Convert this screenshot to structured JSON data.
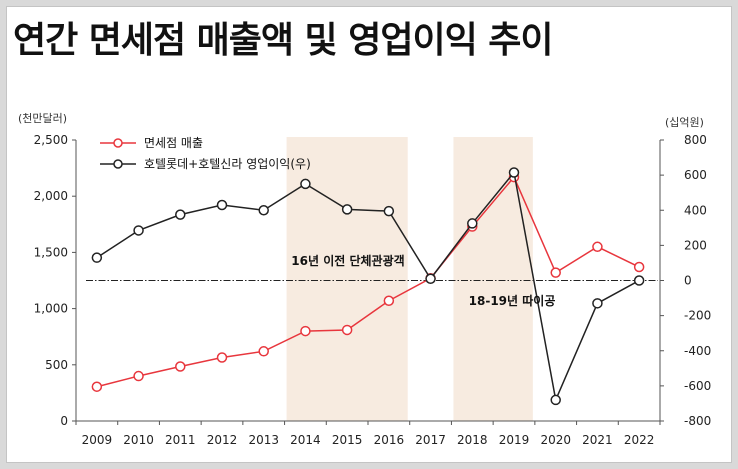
{
  "chart_data": {
    "type": "line",
    "title": "연간 면세점 매출액 및 영업이익 추이",
    "y_left_label": "(천만달러)",
    "y_right_label": "(십억원)",
    "x": [
      "2009",
      "2010",
      "2011",
      "2012",
      "2013",
      "2014",
      "2015",
      "2016",
      "2017",
      "2018",
      "2019",
      "2020",
      "2021",
      "2022"
    ],
    "y_left_ticks": [
      "0",
      "500",
      "1,000",
      "1,500",
      "2,000",
      "2,500"
    ],
    "y_right_ticks": [
      "-800",
      "-600",
      "-400",
      "-200",
      "0",
      "200",
      "400",
      "600",
      "800"
    ],
    "ylim_left": [
      0,
      2500
    ],
    "ylim_right": [
      -800,
      800
    ],
    "series": [
      {
        "name": "면세점 매출",
        "axis": "left",
        "color": "#e8363d",
        "values": [
          305,
          400,
          485,
          565,
          620,
          800,
          810,
          1070,
          1270,
          1730,
          2170,
          1320,
          1550,
          1370
        ]
      },
      {
        "name": "호텔롯데+호텔신라 영업이익(우)",
        "axis": "right",
        "color": "#222222",
        "values": [
          130,
          285,
          375,
          430,
          400,
          550,
          405,
          395,
          10,
          325,
          615,
          -680,
          -130,
          0
        ]
      }
    ],
    "shaded_periods": [
      {
        "label": "16년 이전 단체관광객",
        "from": "2014",
        "to": "2016",
        "color": "#f7ebe0"
      },
      {
        "label": "18-19년 따이공",
        "from": "2018",
        "to": "2019",
        "color": "#f7ebe0"
      }
    ],
    "reference_line": {
      "axis": "right",
      "value": 0,
      "style": "dash-dot"
    },
    "legend_position": "top-left",
    "grid": false
  }
}
